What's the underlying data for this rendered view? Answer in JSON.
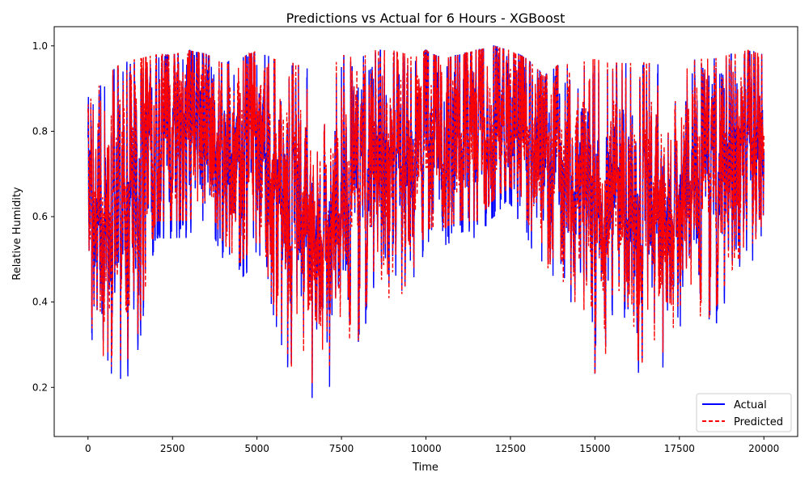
{
  "chart_data": {
    "type": "line",
    "title": "Predictions vs Actual for 6 Hours - XGBoost",
    "xlabel": "Time",
    "ylabel": "Relative Humidity",
    "xlim": [
      -1000,
      21000
    ],
    "ylim": [
      0.085,
      1.045
    ],
    "x_ticks": [
      0,
      2500,
      5000,
      7500,
      10000,
      12500,
      15000,
      17500,
      20000
    ],
    "y_ticks": [
      0.2,
      0.4,
      0.6,
      0.8,
      1.0
    ],
    "x_tick_labels": [
      "0",
      "2500",
      "5000",
      "7500",
      "10000",
      "12500",
      "15000",
      "17500",
      "20000"
    ],
    "y_tick_labels": [
      "0.2",
      "0.4",
      "0.6",
      "0.8",
      "1.0"
    ],
    "grid": false,
    "legend_position": "lower-right",
    "x_count": 20000,
    "envelope_x": [
      0,
      200,
      500,
      1000,
      1500,
      2000,
      2500,
      3000,
      3500,
      4000,
      4500,
      5000,
      5500,
      6000,
      6500,
      7000,
      7500,
      8000,
      8500,
      9000,
      9500,
      10000,
      10500,
      11000,
      11500,
      12000,
      12500,
      13000,
      13500,
      14000,
      14500,
      15000,
      15500,
      16000,
      16500,
      17000,
      17500,
      18000,
      18500,
      19000,
      19500,
      20000
    ],
    "envelope_min": [
      0.49,
      0.17,
      0.22,
      0.19,
      0.29,
      0.55,
      0.55,
      0.55,
      0.6,
      0.5,
      0.45,
      0.5,
      0.35,
      0.21,
      0.17,
      0.17,
      0.13,
      0.27,
      0.45,
      0.35,
      0.4,
      0.53,
      0.53,
      0.55,
      0.55,
      0.6,
      0.63,
      0.55,
      0.45,
      0.4,
      0.35,
      0.19,
      0.25,
      0.24,
      0.21,
      0.24,
      0.3,
      0.3,
      0.33,
      0.43,
      0.48,
      0.53
    ],
    "envelope_max": [
      0.88,
      0.89,
      0.93,
      0.96,
      0.97,
      0.98,
      0.98,
      0.99,
      0.98,
      0.96,
      0.97,
      0.99,
      0.97,
      0.96,
      0.95,
      0.96,
      0.98,
      0.97,
      0.99,
      0.99,
      0.98,
      0.99,
      0.97,
      0.98,
      0.99,
      1.0,
      0.99,
      0.97,
      0.93,
      0.96,
      0.96,
      0.97,
      0.96,
      0.96,
      0.96,
      0.96,
      0.95,
      0.97,
      0.97,
      0.98,
      0.99,
      0.98
    ],
    "series": [
      {
        "name": "Actual",
        "color": "#0000ff",
        "style": "solid"
      },
      {
        "name": "Predicted",
        "color": "#ff0000",
        "style": "dashed"
      }
    ]
  }
}
